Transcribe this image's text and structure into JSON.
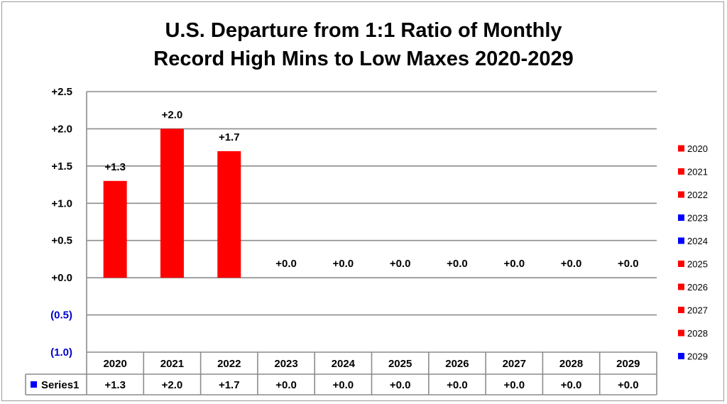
{
  "chart_data": {
    "type": "bar",
    "title_lines": [
      "U.S. Departure from 1:1 Ratio of Monthly",
      "Record High Mins to Low Maxes 2020-2029"
    ],
    "categories": [
      "2020",
      "2021",
      "2022",
      "2023",
      "2024",
      "2025",
      "2026",
      "2027",
      "2028",
      "2029"
    ],
    "series": [
      {
        "name": "Series1",
        "values": [
          1.3,
          2.0,
          1.7,
          0.0,
          0.0,
          0.0,
          0.0,
          0.0,
          0.0,
          0.0
        ],
        "value_labels": [
          "+1.3",
          "+2.0",
          "+1.7",
          "+0.0",
          "+0.0",
          "+0.0",
          "+0.0",
          "+0.0",
          "+0.0",
          "+0.0"
        ]
      }
    ],
    "point_colors": [
      "#ff0000",
      "#ff0000",
      "#ff0000",
      "#0000ff",
      "#0000ff",
      "#ff0000",
      "#ff0000",
      "#ff0000",
      "#ff0000",
      "#0000ff"
    ],
    "ylim": [
      -1.0,
      2.5
    ],
    "yticks": [
      2.5,
      2.0,
      1.5,
      1.0,
      0.5,
      0.0,
      -0.5,
      -1.0
    ],
    "ytick_labels": [
      "+2.5",
      "+2.0",
      "+1.5",
      "+1.0",
      "+0.5",
      "+0.0",
      "(0.5)",
      "(1.0)"
    ],
    "ytick_colors": [
      "#000000",
      "#000000",
      "#000000",
      "#000000",
      "#000000",
      "#000000",
      "#0000cc",
      "#0000cc"
    ],
    "grid": true,
    "legend_position": "right",
    "legend_entries": [
      "2020",
      "2021",
      "2022",
      "2023",
      "2024",
      "2025",
      "2026",
      "2027",
      "2028",
      "2029"
    ],
    "data_table": true,
    "data_table_series_label": "Series1",
    "data_table_series_color": "#0000ff"
  }
}
